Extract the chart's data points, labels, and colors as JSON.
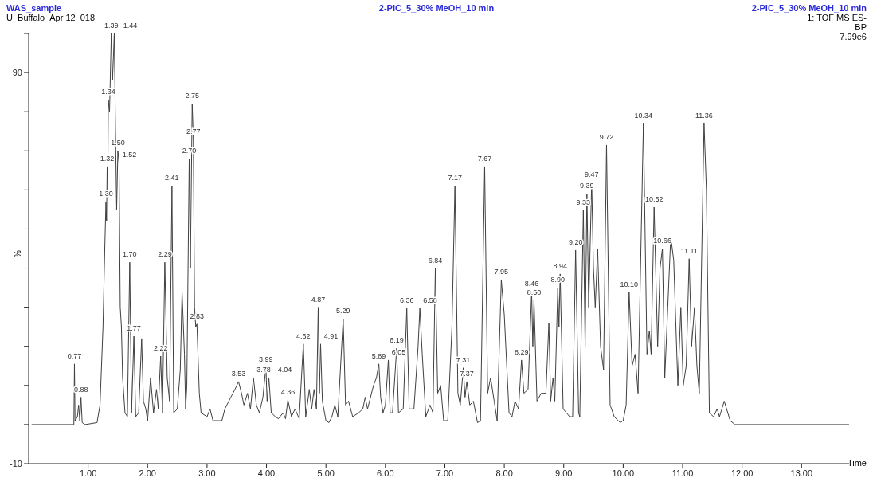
{
  "chart_data": {
    "type": "line",
    "title": "WAS_sample",
    "subtitle": "U_Buffalo_Apr 12_018",
    "xlabel": "Time",
    "ylabel": "%",
    "annotations": [
      "2-PIC_5_30% MeOH_10 min",
      "2-PIC_5_30% MeOH_10 min",
      "1: TOF MS ES-",
      "BP",
      "7.99e6",
      {
        "text": "0.77",
        "x": 0.77,
        "y": 15.5
      },
      {
        "text": "0.88",
        "x": 0.88,
        "y": 7
      },
      {
        "text": "1.30",
        "x": 1.3,
        "y": 57
      },
      {
        "text": "1.32",
        "x": 1.32,
        "y": 66
      },
      {
        "text": "1.34",
        "x": 1.34,
        "y": 83
      },
      {
        "text": "1.39",
        "x": 1.39,
        "y": 100
      },
      {
        "text": "1.44",
        "x": 1.44,
        "y": 100
      },
      {
        "text": "1.50",
        "x": 1.5,
        "y": 70
      },
      {
        "text": "1.52",
        "x": 1.52,
        "y": 67
      },
      {
        "text": "1.70",
        "x": 1.7,
        "y": 41.5
      },
      {
        "text": "1.77",
        "x": 1.77,
        "y": 22.6
      },
      {
        "text": "2.22",
        "x": 2.22,
        "y": 17.5
      },
      {
        "text": "2.29",
        "x": 2.29,
        "y": 41.5
      },
      {
        "text": "2.41",
        "x": 2.41,
        "y": 61
      },
      {
        "text": "2.70",
        "x": 2.7,
        "y": 68
      },
      {
        "text": "2.75",
        "x": 2.75,
        "y": 82
      },
      {
        "text": "2.77",
        "x": 2.77,
        "y": 73
      },
      {
        "text": "2.83",
        "x": 2.83,
        "y": 25.7
      },
      {
        "text": "3.53",
        "x": 3.53,
        "y": 11
      },
      {
        "text": "3.78",
        "x": 3.78,
        "y": 12
      },
      {
        "text": "3.99",
        "x": 3.99,
        "y": 14.7
      },
      {
        "text": "4.04",
        "x": 4.04,
        "y": 12
      },
      {
        "text": "4.36",
        "x": 4.36,
        "y": 6.3
      },
      {
        "text": "4.62",
        "x": 4.62,
        "y": 20.6
      },
      {
        "text": "4.87",
        "x": 4.87,
        "y": 30
      },
      {
        "text": "4.91",
        "x": 4.91,
        "y": 20.6
      },
      {
        "text": "5.29",
        "x": 5.29,
        "y": 27
      },
      {
        "text": "5.89",
        "x": 5.89,
        "y": 15.5
      },
      {
        "text": "6.05",
        "x": 6.05,
        "y": 16.5
      },
      {
        "text": "6.19",
        "x": 6.19,
        "y": 19.5
      },
      {
        "text": "6.36",
        "x": 6.36,
        "y": 29.7
      },
      {
        "text": "6.58",
        "x": 6.58,
        "y": 29.7
      },
      {
        "text": "6.84",
        "x": 6.84,
        "y": 40
      },
      {
        "text": "7.17",
        "x": 7.17,
        "y": 61
      },
      {
        "text": "7.31",
        "x": 7.31,
        "y": 14.5
      },
      {
        "text": "7.37",
        "x": 7.37,
        "y": 11
      },
      {
        "text": "7.67",
        "x": 7.67,
        "y": 66
      },
      {
        "text": "7.95",
        "x": 7.95,
        "y": 37
      },
      {
        "text": "8.29",
        "x": 8.29,
        "y": 16.5
      },
      {
        "text": "8.46",
        "x": 8.46,
        "y": 34
      },
      {
        "text": "8.50",
        "x": 8.5,
        "y": 31.8
      },
      {
        "text": "8.90",
        "x": 8.9,
        "y": 35
      },
      {
        "text": "8.94",
        "x": 8.94,
        "y": 38.5
      },
      {
        "text": "9.20",
        "x": 9.2,
        "y": 44.6
      },
      {
        "text": "9.33",
        "x": 9.33,
        "y": 54.8
      },
      {
        "text": "9.39",
        "x": 9.39,
        "y": 59
      },
      {
        "text": "9.47",
        "x": 9.47,
        "y": 62
      },
      {
        "text": "9.72",
        "x": 9.72,
        "y": 71.5
      },
      {
        "text": "10.10",
        "x": 10.1,
        "y": 33.8
      },
      {
        "text": "10.34",
        "x": 10.34,
        "y": 77
      },
      {
        "text": "10.52",
        "x": 10.52,
        "y": 55.6
      },
      {
        "text": "10.66",
        "x": 10.66,
        "y": 45
      },
      {
        "text": "11.11",
        "x": 11.11,
        "y": 42.4
      },
      {
        "text": "11.36",
        "x": 11.36,
        "y": 77
      }
    ],
    "x": [
      0.05,
      0.76,
      0.77,
      0.78,
      0.82,
      0.84,
      0.86,
      0.88,
      0.9,
      0.95,
      1.15,
      1.2,
      1.25,
      1.28,
      1.3,
      1.31,
      1.32,
      1.33,
      1.34,
      1.36,
      1.39,
      1.41,
      1.44,
      1.46,
      1.48,
      1.5,
      1.52,
      1.54,
      1.56,
      1.58,
      1.62,
      1.66,
      1.7,
      1.73,
      1.77,
      1.8,
      1.85,
      1.9,
      1.93,
      1.97,
      2.0,
      2.05,
      2.1,
      2.15,
      2.18,
      2.22,
      2.25,
      2.29,
      2.33,
      2.37,
      2.41,
      2.44,
      2.5,
      2.55,
      2.58,
      2.62,
      2.64,
      2.66,
      2.7,
      2.72,
      2.75,
      2.77,
      2.79,
      2.81,
      2.83,
      2.87,
      2.9,
      3.0,
      3.05,
      3.1,
      3.2,
      3.25,
      3.3,
      3.4,
      3.47,
      3.53,
      3.58,
      3.62,
      3.68,
      3.73,
      3.78,
      3.83,
      3.88,
      3.94,
      3.99,
      4.01,
      4.04,
      4.08,
      4.15,
      4.2,
      4.28,
      4.32,
      4.36,
      4.42,
      4.48,
      4.55,
      4.62,
      4.66,
      4.72,
      4.76,
      4.8,
      4.84,
      4.87,
      4.89,
      4.91,
      4.94,
      5.0,
      5.05,
      5.1,
      5.15,
      5.2,
      5.29,
      5.33,
      5.38,
      5.45,
      5.55,
      5.62,
      5.66,
      5.7,
      5.8,
      5.85,
      5.89,
      5.92,
      5.96,
      6.0,
      6.05,
      6.08,
      6.12,
      6.19,
      6.22,
      6.3,
      6.36,
      6.4,
      6.48,
      6.55,
      6.58,
      6.62,
      6.68,
      6.75,
      6.8,
      6.84,
      6.88,
      6.93,
      6.98,
      7.05,
      7.12,
      7.17,
      7.22,
      7.26,
      7.31,
      7.34,
      7.37,
      7.42,
      7.48,
      7.55,
      7.6,
      7.67,
      7.72,
      7.77,
      7.83,
      7.88,
      7.95,
      8.0,
      8.08,
      8.13,
      8.18,
      8.24,
      8.29,
      8.33,
      8.4,
      8.46,
      8.48,
      8.5,
      8.55,
      8.62,
      8.7,
      8.75,
      8.78,
      8.82,
      8.85,
      8.9,
      8.92,
      8.94,
      8.99,
      9.1,
      9.15,
      9.2,
      9.25,
      9.27,
      9.33,
      9.36,
      9.39,
      9.42,
      9.47,
      9.5,
      9.53,
      9.57,
      9.62,
      9.67,
      9.72,
      9.78,
      9.85,
      9.95,
      10.0,
      10.05,
      10.1,
      10.15,
      10.2,
      10.25,
      10.34,
      10.4,
      10.44,
      10.47,
      10.52,
      10.58,
      10.62,
      10.66,
      10.7,
      10.75,
      10.8,
      10.85,
      10.92,
      10.97,
      11.01,
      11.06,
      11.11,
      11.15,
      11.2,
      11.24,
      11.28,
      11.36,
      11.4,
      11.45,
      11.52,
      11.58,
      11.62,
      11.7,
      11.8,
      11.88,
      13.8
    ],
    "series": [
      {
        "color": "#404040",
        "values": [
          0,
          0,
          15.5,
          1,
          2,
          5,
          1,
          7,
          0.5,
          0,
          0.5,
          5,
          25,
          45,
          57,
          52,
          66,
          60,
          83,
          80,
          100,
          88,
          100,
          75,
          55,
          70,
          67,
          30,
          25,
          12,
          3,
          2,
          41.5,
          3,
          22.6,
          2,
          3,
          22,
          6,
          4,
          1,
          12,
          3,
          9,
          4,
          17.5,
          3,
          41.5,
          12,
          6,
          61,
          3,
          4,
          14,
          34,
          18,
          4,
          10,
          68,
          40,
          82,
          73,
          30,
          25,
          25.7,
          8,
          3,
          2,
          4,
          1,
          1,
          1,
          4,
          7,
          9,
          11,
          8,
          5,
          8,
          4,
          12,
          5,
          3,
          7,
          14.7,
          6,
          12,
          3,
          2,
          1.5,
          3,
          1.5,
          6.3,
          2,
          4,
          1.5,
          20.6,
          2,
          9,
          4,
          9,
          4,
          30,
          8,
          20.6,
          6,
          1,
          0.5,
          2,
          5,
          2,
          27,
          5,
          6,
          2,
          3,
          4,
          7,
          4,
          10,
          12,
          15.5,
          7,
          3,
          5,
          16.5,
          3,
          3,
          19.5,
          3,
          4,
          29.7,
          4,
          4,
          20,
          29.7,
          18,
          2,
          5,
          3,
          40,
          8,
          10,
          1,
          1,
          25,
          61,
          8,
          5,
          14.5,
          7,
          11,
          5,
          6,
          0.5,
          1,
          66,
          8,
          12,
          6,
          1,
          37,
          28,
          3,
          2,
          6,
          4,
          16.5,
          8,
          9,
          34,
          20,
          31.8,
          6,
          8,
          8,
          26,
          6,
          12,
          6,
          35,
          25,
          38.5,
          4,
          2,
          2,
          44.6,
          3,
          2,
          54.8,
          20,
          59,
          30,
          62,
          40,
          30,
          45,
          20,
          14,
          71.5,
          5,
          2,
          0.5,
          1,
          5,
          33.8,
          15,
          18,
          8,
          77,
          18,
          24,
          18,
          55.6,
          20,
          40,
          45,
          12,
          30,
          48,
          42,
          10,
          30,
          10,
          15,
          42.4,
          20,
          30,
          15,
          8,
          77,
          60,
          3,
          2,
          4,
          2,
          6,
          1,
          0,
          0
        ]
      }
    ],
    "xlim": [
      0,
      13.8
    ],
    "xticks": [
      {
        "value": 1,
        "label": "1.00"
      },
      {
        "value": 2,
        "label": "2.00"
      },
      {
        "value": 3,
        "label": "3.00"
      },
      {
        "value": 4,
        "label": "4.00"
      },
      {
        "value": 5,
        "label": "5.00"
      },
      {
        "value": 6,
        "label": "6.00"
      },
      {
        "value": 7,
        "label": "7.00"
      },
      {
        "value": 8,
        "label": "8.00"
      },
      {
        "value": 9,
        "label": "9.00"
      },
      {
        "value": 10,
        "label": "10.00"
      },
      {
        "value": 11,
        "label": "11.00"
      },
      {
        "value": 12,
        "label": "12.00"
      },
      {
        "value": 13,
        "label": "13.00"
      }
    ],
    "ylim": [
      -10,
      100
    ],
    "yticks": [
      -10,
      {
        "value": 0,
        "label": null
      },
      {
        "value": 10,
        "label": null
      },
      {
        "value": 20,
        "label": null
      },
      {
        "value": 30,
        "label": null
      },
      {
        "value": 40,
        "label": null
      },
      {
        "value": 50,
        "label": null
      },
      {
        "value": 60,
        "label": null
      },
      {
        "value": 70,
        "label": null
      },
      {
        "value": 80,
        "label": null
      },
      90,
      {
        "value": 100,
        "label": null
      }
    ],
    "grid": false,
    "legend": false,
    "marker": "none",
    "line_style": "solid"
  }
}
